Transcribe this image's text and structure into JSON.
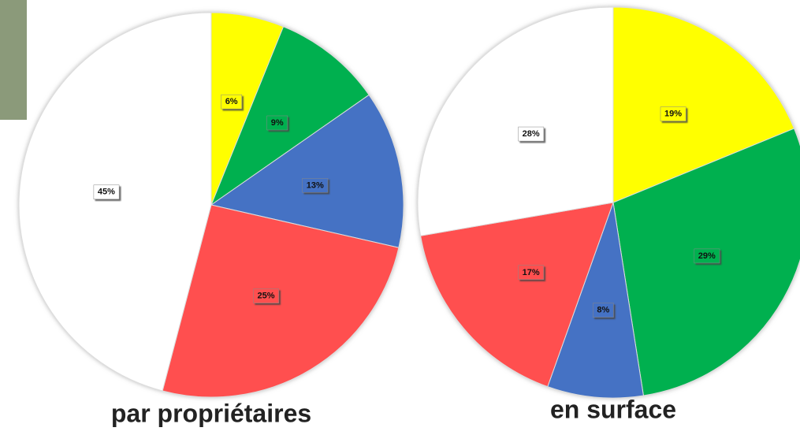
{
  "chart_data": [
    {
      "type": "pie",
      "title": "par propriétaires",
      "categories": [
        null,
        null,
        null,
        null,
        null
      ],
      "values": [
        6,
        9,
        13,
        25,
        45
      ],
      "value_labels": [
        "6%",
        "9%",
        "13%",
        "25%",
        "45%"
      ],
      "colors": [
        "#ffff00",
        "#00b050",
        "#4472c4",
        "#ff5050",
        "#ffffff"
      ]
    },
    {
      "type": "pie",
      "title": "en surface",
      "categories": [
        null,
        null,
        null,
        null,
        null
      ],
      "values": [
        19,
        29,
        8,
        17,
        28
      ],
      "value_labels": [
        "19%",
        "29%",
        "8%",
        "17%",
        "28%"
      ],
      "colors": [
        "#ffff00",
        "#00b050",
        "#4472c4",
        "#ff5050",
        "#ffffff"
      ]
    }
  ]
}
